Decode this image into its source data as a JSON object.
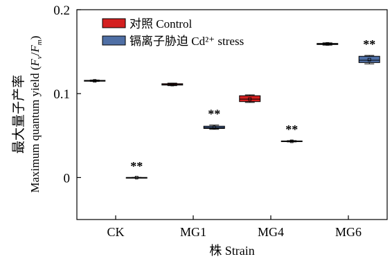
{
  "chart_data": {
    "type": "box",
    "title": "",
    "xlabel": "株 Strain",
    "ylabel_zh": "最大量子产率",
    "ylabel_en_prefix": "Maximum quantum yield (",
    "ylabel_fv": "F",
    "ylabel_fv_sub": "v",
    "ylabel_slash": "/",
    "ylabel_fm": "F",
    "ylabel_fm_sub": "m",
    "ylabel_close": ")",
    "ylim": [
      -0.05,
      0.2
    ],
    "yticks": [
      0,
      0.1,
      0.2
    ],
    "ytick_labels": [
      "0",
      "0.1",
      "0.2"
    ],
    "categories": [
      "CK",
      "MG1",
      "MG4",
      "MG6"
    ],
    "legend_position": "top-left",
    "series": [
      {
        "name": "对照 Control",
        "color": "#d42020",
        "boxes": [
          {
            "min": 0.1145,
            "q1": 0.1148,
            "median": 0.1152,
            "q3": 0.1158,
            "max": 0.1162,
            "mean": 0.1152
          },
          {
            "min": 0.1095,
            "q1": 0.1102,
            "median": 0.1108,
            "q3": 0.1118,
            "max": 0.1125,
            "mean": 0.1108
          },
          {
            "min": 0.0895,
            "q1": 0.0905,
            "median": 0.0935,
            "q3": 0.0975,
            "max": 0.0985,
            "mean": 0.0935
          },
          {
            "min": 0.1578,
            "q1": 0.1585,
            "median": 0.1592,
            "q3": 0.1598,
            "max": 0.1605,
            "mean": 0.1592
          }
        ],
        "significance": [
          "",
          "",
          "",
          ""
        ]
      },
      {
        "name": "镉离子胁迫 Cd²⁺ stress",
        "color": "#4f6fa5",
        "boxes": [
          {
            "min": -0.0002,
            "q1": -0.0001,
            "median": 0.0,
            "q3": 0.0001,
            "max": 0.0002,
            "mean": 0.0
          },
          {
            "min": 0.0575,
            "q1": 0.0585,
            "median": 0.0595,
            "q3": 0.0612,
            "max": 0.0625,
            "mean": 0.0598
          },
          {
            "min": 0.0425,
            "q1": 0.0428,
            "median": 0.0432,
            "q3": 0.0436,
            "max": 0.044,
            "mean": 0.0432
          },
          {
            "min": 0.1355,
            "q1": 0.137,
            "median": 0.1398,
            "q3": 0.1445,
            "max": 0.1455,
            "mean": 0.1405
          }
        ],
        "significance": [
          "**",
          "**",
          "**",
          "**"
        ]
      }
    ]
  }
}
